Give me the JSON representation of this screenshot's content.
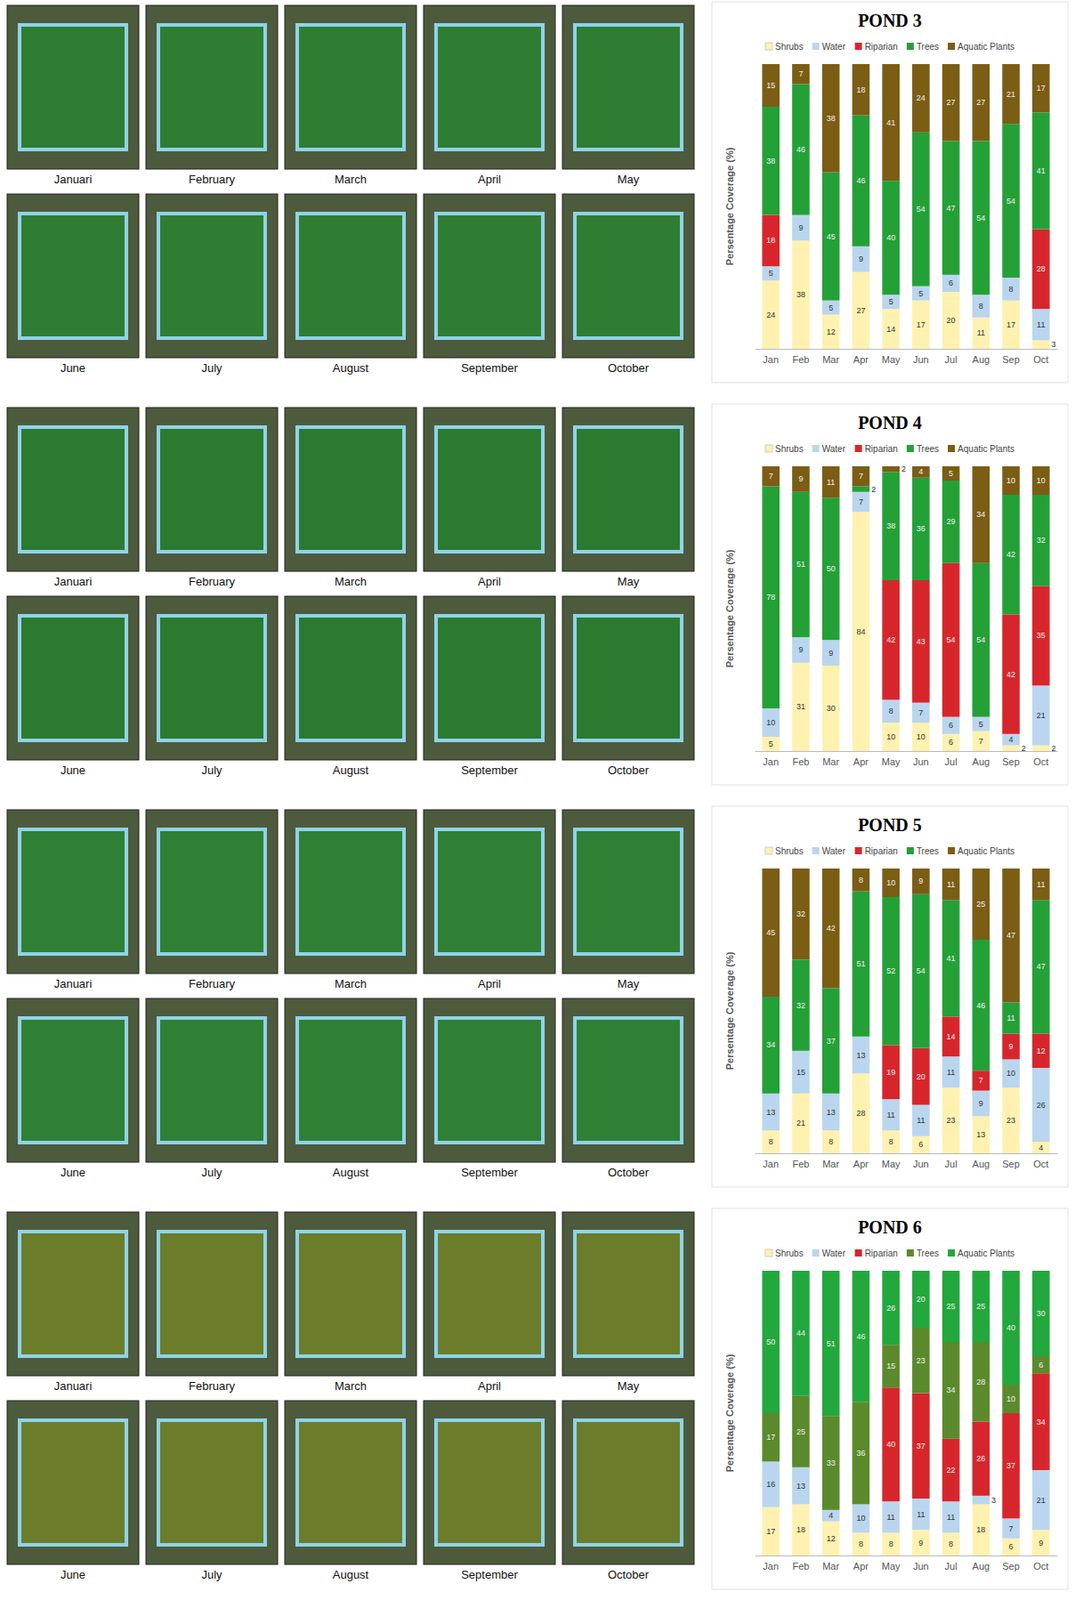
{
  "chart_data": [
    {
      "type": "bar",
      "title": "POND 3",
      "y_label": "Persentage Coverage (%)",
      "categories": [
        "Jan",
        "Feb",
        "Mar",
        "Apr",
        "May",
        "Jun",
        "Jul",
        "Aug",
        "Sep",
        "Oct"
      ],
      "series": [
        {
          "name": "Shrubs",
          "color": "#fff2b0",
          "values": [
            24,
            38,
            12,
            27,
            14,
            17,
            20,
            11,
            17,
            3
          ]
        },
        {
          "name": "Water",
          "color": "#bad6ee",
          "values": [
            5,
            9,
            5,
            9,
            5,
            5,
            6,
            8,
            8,
            11
          ]
        },
        {
          "name": "Riparian",
          "color": "#d7262b",
          "values": [
            18,
            null,
            null,
            null,
            null,
            null,
            null,
            null,
            null,
            28
          ]
        },
        {
          "name": "Trees",
          "color": "#23a136",
          "values": [
            38,
            46,
            45,
            46,
            40,
            54,
            47,
            54,
            54,
            41
          ]
        },
        {
          "name": "Aquatic Plants",
          "color": "#7b5d14",
          "values": [
            15,
            7,
            38,
            18,
            41,
            24,
            27,
            27,
            21,
            17
          ]
        }
      ],
      "stacked": true,
      "data_labels": true,
      "tick_labels": "x",
      "ylim": [
        0,
        100
      ],
      "legend": "top"
    },
    {
      "type": "bar",
      "title": "POND 4",
      "y_label": "Persentage Coverage (%)",
      "categories": [
        "Jan",
        "Feb",
        "Mar",
        "Apr",
        "May",
        "Jun",
        "Jul",
        "Aug",
        "Sep",
        "Oct"
      ],
      "series": [
        {
          "name": "Shrubs",
          "color": "#fff2b0",
          "values": [
            5,
            31,
            30,
            84,
            10,
            10,
            6,
            7,
            2,
            2
          ]
        },
        {
          "name": "Water",
          "color": "#bad6ee",
          "values": [
            10,
            9,
            9,
            7,
            8,
            7,
            6,
            5,
            4,
            21
          ]
        },
        {
          "name": "Riparian",
          "color": "#d7262b",
          "values": [
            null,
            null,
            null,
            null,
            42,
            43,
            54,
            null,
            42,
            35
          ]
        },
        {
          "name": "Trees",
          "color": "#23a136",
          "values": [
            78,
            51,
            50,
            2,
            38,
            36,
            29,
            54,
            42,
            32
          ]
        },
        {
          "name": "Aquatic Plants",
          "color": "#7b5d14",
          "values": [
            7,
            9,
            11,
            7,
            2,
            4,
            5,
            34,
            10,
            10
          ]
        }
      ],
      "stacked": true,
      "data_labels": true,
      "tick_labels": "x",
      "ylim": [
        0,
        100
      ],
      "legend": "top"
    },
    {
      "type": "bar",
      "title": "POND 5",
      "y_label": "Persentage Coverage (%)",
      "categories": [
        "Jan",
        "Feb",
        "Mar",
        "Apr",
        "May",
        "Jun",
        "Jul",
        "Aug",
        "Sep",
        "Oct"
      ],
      "series": [
        {
          "name": "Shrubs",
          "color": "#fff2b0",
          "values": [
            8,
            21,
            8,
            28,
            8,
            6,
            23,
            13,
            23,
            4
          ]
        },
        {
          "name": "Water",
          "color": "#bad6ee",
          "values": [
            13,
            15,
            13,
            13,
            11,
            11,
            11,
            9,
            10,
            26
          ]
        },
        {
          "name": "Riparian",
          "color": "#d7262b",
          "values": [
            null,
            null,
            null,
            null,
            19,
            20,
            14,
            7,
            9,
            12
          ]
        },
        {
          "name": "Trees",
          "color": "#23a136",
          "values": [
            34,
            32,
            37,
            51,
            52,
            54,
            41,
            46,
            11,
            47
          ]
        },
        {
          "name": "Aquatic Plants",
          "color": "#7b5d14",
          "values": [
            45,
            32,
            42,
            8,
            10,
            9,
            11,
            25,
            47,
            11
          ]
        }
      ],
      "stacked": true,
      "data_labels": true,
      "tick_labels": "x",
      "ylim": [
        0,
        100
      ],
      "legend": "top"
    },
    {
      "type": "bar",
      "title": "POND 6",
      "y_label": "Persentage Coverage (%)",
      "categories": [
        "Jan",
        "Feb",
        "Mar",
        "Apr",
        "May",
        "Jun",
        "Jul",
        "Aug",
        "Sep",
        "Oct"
      ],
      "series": [
        {
          "name": "Shrubs",
          "color": "#fff2b0",
          "values": [
            17,
            18,
            12,
            8,
            8,
            9,
            8,
            18,
            6,
            9
          ]
        },
        {
          "name": "Water",
          "color": "#bad6ee",
          "values": [
            16,
            13,
            4,
            10,
            11,
            11,
            11,
            3,
            7,
            21
          ]
        },
        {
          "name": "Riparian",
          "color": "#d7262b",
          "values": [
            null,
            null,
            null,
            null,
            40,
            37,
            22,
            26,
            37,
            34
          ]
        },
        {
          "name": "Trees",
          "color": "#5b8a2c",
          "values": [
            17,
            25,
            33,
            36,
            15,
            23,
            34,
            28,
            10,
            6
          ]
        },
        {
          "name": "Aquatic Plants",
          "color": "#22a83c",
          "values": [
            50,
            44,
            51,
            46,
            26,
            20,
            25,
            25,
            40,
            30
          ]
        }
      ],
      "stacked": true,
      "data_labels": true,
      "tick_labels": "x",
      "ylim": [
        0,
        100
      ],
      "legend": "top"
    }
  ],
  "image_panels": [
    {
      "labels": [
        "Januari",
        "February",
        "March",
        "April",
        "May",
        "June",
        "July",
        "August",
        "September",
        "October"
      ]
    },
    {
      "labels": [
        "Januari",
        "February",
        "March",
        "April",
        "May",
        "June",
        "July",
        "August",
        "September",
        "October"
      ]
    },
    {
      "labels": [
        "Januari",
        "February",
        "March",
        "April",
        "May",
        "June",
        "July",
        "August",
        "September",
        "October"
      ]
    },
    {
      "labels": [
        "Januari",
        "February",
        "March",
        "April",
        "May",
        "June",
        "July",
        "August",
        "September",
        "October"
      ]
    }
  ]
}
